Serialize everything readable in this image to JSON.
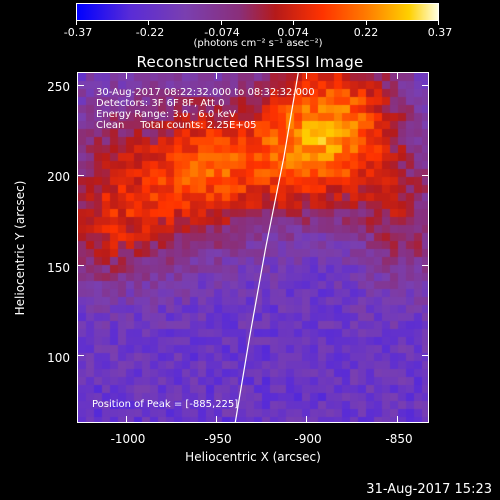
{
  "colorbar": {
    "ticks": [
      "-0.37",
      "-0.22",
      "-0.074",
      "0.074",
      "0.22",
      "0.37"
    ],
    "unit": "(photons cm⁻² s⁻¹ asec⁻²)",
    "colors": [
      "#0000ff",
      "#7a3fb0",
      "#b51a1a",
      "#ff7a00",
      "#ffd000",
      "#ffffe0"
    ]
  },
  "title": "Reconstructed RHESSI Image",
  "info": {
    "line1": "30-Aug-2017 08:22:32.000 to 08:32:32.000",
    "line2": "Detectors: 3F 6F 8F, Att 0",
    "line3": "Energy Range: 3.0 - 6.0 keV",
    "line4": "Clean     Total counts: 2.25E+05"
  },
  "peak_text": "Position of Peak = [-885,225]",
  "timestamp": "31-Aug-2017 15:23",
  "chart_data": {
    "type": "heatmap",
    "title": "Reconstructed RHESSI Image",
    "xlabel": "Heliocentric X (arcsec)",
    "ylabel": "Heliocentric Y (arcsec)",
    "xlim": [
      -1027,
      -832
    ],
    "ylim": [
      62,
      257
    ],
    "xticks": [
      "-1000",
      "-950",
      "-900",
      "-850"
    ],
    "xtick_values": [
      -1000,
      -950,
      -900,
      -850
    ],
    "yticks": [
      "100",
      "150",
      "200",
      "250"
    ],
    "ytick_values": [
      100,
      150,
      200,
      250
    ],
    "zlim": [
      -0.37,
      0.37
    ],
    "peak": [
      -885,
      225
    ],
    "limb_points": [
      [
        -940,
        62
      ],
      [
        -932,
        110
      ],
      [
        -923,
        160
      ],
      [
        -913,
        210
      ],
      [
        -905,
        257
      ]
    ]
  }
}
